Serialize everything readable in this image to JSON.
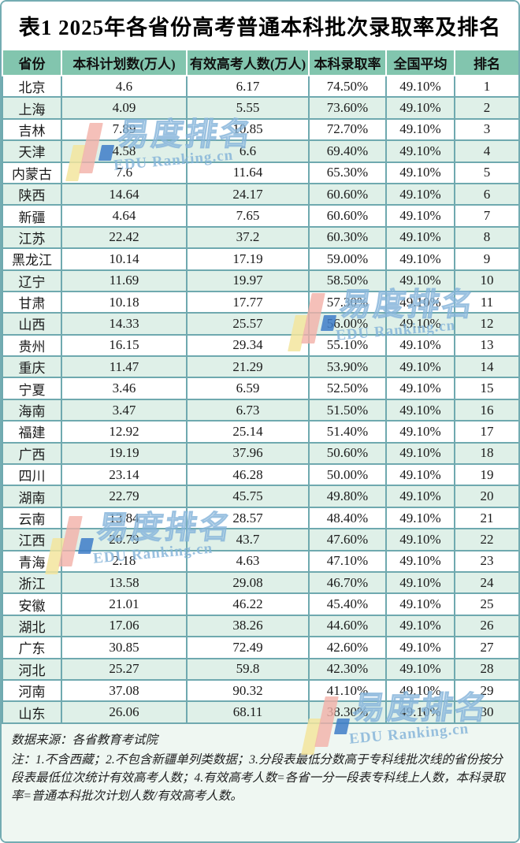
{
  "title": "表1  2025年各省份高考普通本科批次录取率及排名",
  "chart_data": {
    "type": "table",
    "title": "表1  2025年各省份高考普通本科批次录取率及排名",
    "columns": [
      "省份",
      "本科计划数(万人)",
      "有效高考人数(万人)",
      "本科录取率",
      "全国平均",
      "排名"
    ],
    "rows": [
      [
        "北京",
        "4.6",
        "6.17",
        "74.50%",
        "49.10%",
        "1"
      ],
      [
        "上海",
        "4.09",
        "5.55",
        "73.60%",
        "49.10%",
        "2"
      ],
      [
        "吉林",
        "7.89",
        "10.85",
        "72.70%",
        "49.10%",
        "3"
      ],
      [
        "天津",
        "4.58",
        "6.6",
        "69.40%",
        "49.10%",
        "4"
      ],
      [
        "内蒙古",
        "7.6",
        "11.64",
        "65.30%",
        "49.10%",
        "5"
      ],
      [
        "陕西",
        "14.64",
        "24.17",
        "60.60%",
        "49.10%",
        "6"
      ],
      [
        "新疆",
        "4.64",
        "7.65",
        "60.60%",
        "49.10%",
        "7"
      ],
      [
        "江苏",
        "22.42",
        "37.2",
        "60.30%",
        "49.10%",
        "8"
      ],
      [
        "黑龙江",
        "10.14",
        "17.19",
        "59.00%",
        "49.10%",
        "9"
      ],
      [
        "辽宁",
        "11.69",
        "19.97",
        "58.50%",
        "49.10%",
        "10"
      ],
      [
        "甘肃",
        "10.18",
        "17.77",
        "57.30%",
        "49.10%",
        "11"
      ],
      [
        "山西",
        "14.33",
        "25.57",
        "56.00%",
        "49.10%",
        "12"
      ],
      [
        "贵州",
        "16.15",
        "29.34",
        "55.10%",
        "49.10%",
        "13"
      ],
      [
        "重庆",
        "11.47",
        "21.29",
        "53.90%",
        "49.10%",
        "14"
      ],
      [
        "宁夏",
        "3.46",
        "6.59",
        "52.50%",
        "49.10%",
        "15"
      ],
      [
        "海南",
        "3.47",
        "6.73",
        "51.50%",
        "49.10%",
        "16"
      ],
      [
        "福建",
        "12.92",
        "25.14",
        "51.40%",
        "49.10%",
        "17"
      ],
      [
        "广西",
        "19.19",
        "37.96",
        "50.60%",
        "49.10%",
        "18"
      ],
      [
        "四川",
        "23.14",
        "46.28",
        "50.00%",
        "49.10%",
        "19"
      ],
      [
        "湖南",
        "22.79",
        "45.75",
        "49.80%",
        "49.10%",
        "20"
      ],
      [
        "云南",
        "13.84",
        "28.57",
        "48.40%",
        "49.10%",
        "21"
      ],
      [
        "江西",
        "20.79",
        "43.7",
        "47.60%",
        "49.10%",
        "22"
      ],
      [
        "青海",
        "2.18",
        "4.63",
        "47.10%",
        "49.10%",
        "23"
      ],
      [
        "浙江",
        "13.58",
        "29.08",
        "46.70%",
        "49.10%",
        "24"
      ],
      [
        "安徽",
        "21.01",
        "46.22",
        "45.40%",
        "49.10%",
        "25"
      ],
      [
        "湖北",
        "17.06",
        "38.26",
        "44.60%",
        "49.10%",
        "26"
      ],
      [
        "广东",
        "30.85",
        "72.49",
        "42.60%",
        "49.10%",
        "27"
      ],
      [
        "河北",
        "25.27",
        "59.8",
        "42.30%",
        "49.10%",
        "28"
      ],
      [
        "河南",
        "37.08",
        "90.32",
        "41.10%",
        "49.10%",
        "29"
      ],
      [
        "山东",
        "26.06",
        "68.11",
        "38.30%",
        "49.10%",
        "30"
      ]
    ],
    "national_average": "49.10%",
    "layout": {
      "striped": true,
      "header_bg": "green",
      "grid": true
    }
  },
  "footer": {
    "source": "数据来源：各省教育考试院",
    "note": "注：1.不含西藏；2.不包含新疆单列类数据；3.分段表最低分数高于专科线批次线的省份按分段表最低位次统计有效高考人数；4.有效高考人数=各省一分一段表专科线上人数，本科录取率=普通本科批次计划人数/有效高考人数。"
  },
  "watermark": {
    "text_cn": "易度排名",
    "text_en": "EDU Ranking.cn"
  },
  "colors": {
    "header_bg": "#82c5ae",
    "row_alt_bg": "#dff0e8",
    "grid_border": "#6fa9af",
    "outer_border": "#74acb2",
    "footer_bg": "#eff7f2",
    "watermark_blue": "#82b2d8",
    "logo_yellow": "#f3e59e",
    "logo_pink": "#f3b0a7",
    "logo_blue": "#3e7cc8"
  }
}
